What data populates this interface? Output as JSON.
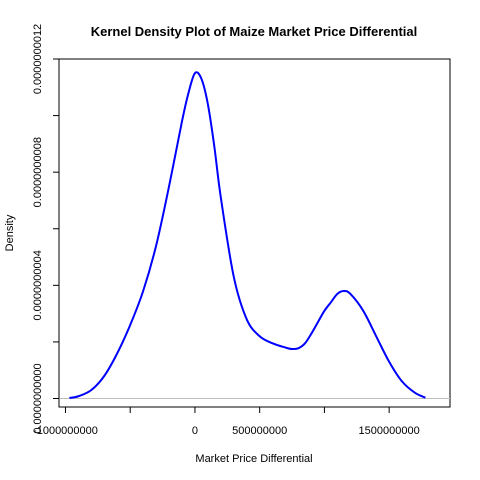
{
  "chart_data": {
    "type": "line",
    "title": "Kernel Density Plot of Maize    Market Price Differential",
    "xlabel": "Market Price Differential",
    "ylabel": "Density",
    "xlim": [
      -1050000000,
      1970000000
    ],
    "ylim": [
      -3e-11,
      1.2e-09
    ],
    "x_ticks": [
      -1000000000,
      -500000000,
      0,
      500000000,
      1000000000,
      1500000000
    ],
    "x_tick_labels": [
      "-1000000000",
      "",
      "0",
      "500000000",
      "",
      "1500000000"
    ],
    "y_ticks": [
      0,
      2e-10,
      4e-10,
      6e-10,
      8e-10,
      1e-09,
      1.2e-09
    ],
    "y_tick_labels": [
      "0.0000000000",
      "",
      "0.0000000004",
      "",
      "0.0000000008",
      "",
      "0.0000000012"
    ],
    "grid": false,
    "baseline": 0,
    "series": [
      {
        "color": "#0000ff",
        "x": [
          -970000000,
          -900000000,
          -800000000,
          -700000000,
          -600000000,
          -500000000,
          -400000000,
          -300000000,
          -200000000,
          -100000000,
          -50000000,
          0,
          50000000,
          100000000,
          150000000,
          200000000,
          300000000,
          400000000,
          500000000,
          600000000,
          700000000,
          750000000,
          800000000,
          850000000,
          900000000,
          950000000,
          1000000000,
          1050000000,
          1100000000,
          1150000000,
          1200000000,
          1300000000,
          1400000000,
          1500000000,
          1600000000,
          1700000000,
          1780000000
        ],
        "y": [
          2e-12,
          8e-12,
          3e-11,
          8e-11,
          1.6e-10,
          2.6e-10,
          3.8e-10,
          5.4e-10,
          7.5e-10,
          9.8e-10,
          1.08e-09,
          1.15e-09,
          1.13e-09,
          1.04e-09,
          8.9e-10,
          7.1e-10,
          4.3e-10,
          2.8e-10,
          2.2e-10,
          1.95e-10,
          1.8e-10,
          1.75e-10,
          1.78e-10,
          1.95e-10,
          2.3e-10,
          2.7e-10,
          3.1e-10,
          3.4e-10,
          3.7e-10,
          3.8e-10,
          3.7e-10,
          3.1e-10,
          2.2e-10,
          1.3e-10,
          6e-11,
          2e-11,
          3e-12
        ]
      }
    ]
  }
}
